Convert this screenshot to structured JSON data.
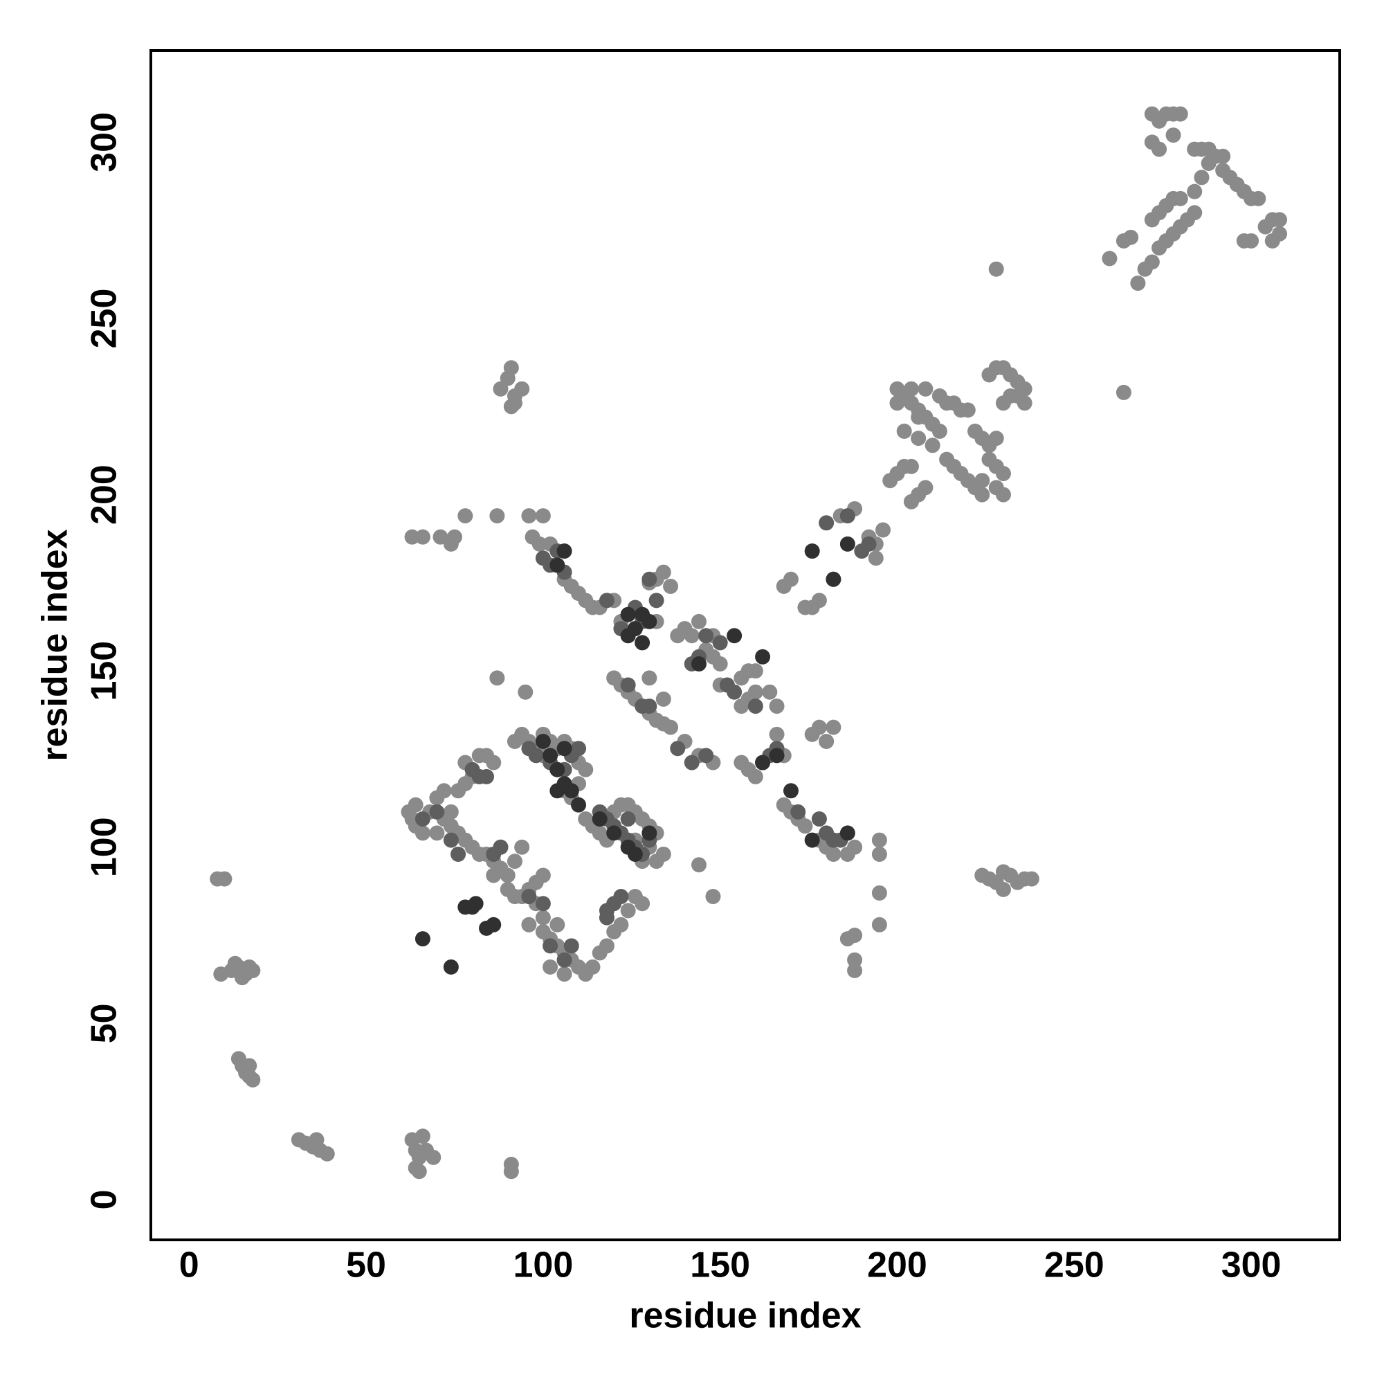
{
  "chart_data": {
    "type": "scatter",
    "x_label": "residue index",
    "y_label": "residue index",
    "xlim": [
      -10.8,
      325
    ],
    "ylim": [
      -11.4,
      326
    ],
    "xticks": [
      0,
      50,
      100,
      150,
      200,
      250,
      300
    ],
    "yticks": [
      0,
      50,
      100,
      150,
      200,
      250,
      300
    ],
    "grid": false,
    "series": [
      {
        "color": "#8a8a8a",
        "x": [
          8,
          10,
          9,
          12,
          14,
          16,
          18,
          13,
          15,
          17,
          14,
          15,
          16,
          17,
          18,
          17,
          31,
          33,
          35,
          37,
          39,
          36,
          63,
          64,
          65,
          66,
          67,
          69,
          64,
          65,
          91,
          91,
          88,
          90,
          91,
          92,
          94,
          91,
          92,
          63,
          66,
          71,
          75,
          74,
          78,
          87,
          87,
          95,
          96,
          100,
          97,
          99,
          102,
          106,
          108,
          110,
          112,
          114,
          116,
          120,
          134,
          132,
          136,
          130,
          122,
          126,
          128,
          132,
          140,
          138,
          142,
          146,
          148,
          150,
          144,
          148,
          120,
          122,
          124,
          126,
          130,
          132,
          134,
          136,
          140,
          144,
          148,
          130,
          134,
          150,
          156,
          158,
          160,
          164,
          166,
          156,
          158,
          160,
          156,
          158,
          160,
          168,
          166,
          168,
          170,
          172,
          174,
          178,
          180,
          182,
          186,
          188,
          176,
          178,
          180,
          182,
          195,
          195,
          195,
          195,
          188,
          186,
          188,
          188,
          148,
          144,
          168,
          170,
          174,
          176,
          178,
          182,
          184,
          188,
          192,
          194,
          196,
          194,
          198,
          200,
          202,
          204,
          204,
          206,
          208,
          200,
          202,
          204,
          206,
          208,
          210,
          212,
          202,
          206,
          210,
          204,
          208,
          212,
          200,
          206,
          214,
          216,
          218,
          220,
          222,
          224,
          226,
          228,
          214,
          216,
          218,
          220,
          222,
          224,
          226,
          228,
          230,
          224,
          228,
          230,
          226,
          228,
          230,
          232,
          234,
          236,
          230,
          232,
          234,
          236,
          228,
          264,
          224,
          226,
          228,
          230,
          232,
          234,
          236,
          238,
          230,
          260,
          264,
          266,
          268,
          270,
          272,
          274,
          276,
          278,
          280,
          282,
          284,
          272,
          274,
          276,
          278,
          280,
          272,
          274,
          278,
          272,
          274,
          276,
          278,
          280,
          284,
          286,
          284,
          286,
          288,
          290,
          292,
          288,
          292,
          294,
          296,
          298,
          300,
          302,
          298,
          300,
          306,
          308,
          306,
          308,
          304,
          62,
          63,
          64,
          66,
          68,
          64,
          70,
          72,
          74,
          70,
          72,
          76,
          78,
          80,
          78,
          82,
          84,
          86,
          74,
          76,
          78,
          80,
          82,
          84,
          86,
          88,
          90,
          92,
          94,
          88,
          86,
          90,
          92,
          94,
          96,
          98,
          100,
          98,
          100,
          96,
          100,
          102,
          104,
          106,
          108,
          110,
          112,
          114,
          116,
          118,
          120,
          122,
          124,
          126,
          128,
          104,
          102,
          106,
          94,
          96,
          98,
          100,
          92,
          100,
          102,
          104,
          106,
          108,
          110,
          112,
          110,
          108,
          106,
          112,
          114,
          116,
          118,
          120,
          122,
          124,
          126,
          128,
          130,
          132,
          130,
          132,
          134,
          128,
          126
        ],
        "y": [
          91,
          91,
          64,
          65,
          66,
          64,
          65,
          67,
          63,
          66,
          40,
          38,
          36,
          35,
          34,
          38,
          17,
          16,
          15,
          14,
          13,
          17,
          17,
          14,
          12,
          18,
          14,
          12,
          9,
          8,
          10,
          8,
          230,
          233,
          236,
          228,
          230,
          225,
          226,
          188,
          188,
          188,
          188,
          186,
          194,
          194,
          148,
          144,
          194,
          194,
          188,
          186,
          186,
          176,
          174,
          172,
          170,
          168,
          168,
          170,
          178,
          176,
          174,
          175,
          164,
          162,
          165,
          164,
          162,
          160,
          160,
          156,
          154,
          152,
          164,
          160,
          148,
          146,
          144,
          142,
          138,
          136,
          135,
          134,
          130,
          126,
          124,
          148,
          142,
          146,
          140,
          142,
          144,
          144,
          140,
          148,
          150,
          150,
          124,
          122,
          120,
          126,
          132,
          112,
          110,
          108,
          106,
          102,
          100,
          98,
          98,
          100,
          132,
          134,
          130,
          134,
          102,
          98,
          87,
          78,
          75,
          74,
          68,
          65,
          86,
          95,
          174,
          176,
          168,
          168,
          170,
          176,
          194,
          196,
          188,
          186,
          190,
          182,
          204,
          206,
          208,
          208,
          198,
          200,
          202,
          230,
          228,
          226,
          224,
          222,
          220,
          218,
          218,
          216,
          214,
          230,
          230,
          228,
          226,
          222,
          226,
          226,
          224,
          224,
          218,
          216,
          214,
          216,
          210,
          208,
          206,
          204,
          202,
          200,
          210,
          208,
          206,
          204,
          202,
          200,
          234,
          236,
          236,
          234,
          232,
          230,
          226,
          228,
          228,
          226,
          264,
          229,
          92,
          91,
          90,
          93,
          92,
          90,
          91,
          91,
          88,
          267,
          272,
          273,
          260,
          264,
          266,
          270,
          272,
          274,
          276,
          278,
          280,
          308,
          306,
          308,
          308,
          308,
          300,
          298,
          302,
          278,
          280,
          282,
          284,
          284,
          286,
          290,
          298,
          298,
          298,
          296,
          296,
          294,
          292,
          290,
          288,
          286,
          284,
          284,
          272,
          272,
          272,
          274,
          278,
          278,
          276,
          110,
          108,
          106,
          104,
          110,
          112,
          104,
          108,
          110,
          114,
          116,
          116,
          118,
          120,
          124,
          126,
          126,
          124,
          106,
          104,
          102,
          100,
          98,
          98,
          96,
          94,
          92,
          96,
          100,
          100,
          92,
          88,
          86,
          86,
          88,
          90,
          92,
          84,
          80,
          78,
          76,
          74,
          72,
          70,
          68,
          66,
          64,
          66,
          70,
          72,
          76,
          78,
          82,
          86,
          84,
          78,
          66,
          64,
          132,
          130,
          128,
          126,
          130,
          132,
          130,
          128,
          130,
          128,
          124,
          122,
          118,
          114,
          116,
          108,
          106,
          104,
          102,
          110,
          112,
          112,
          110,
          108,
          106,
          104,
          100,
          96,
          98,
          96,
          102
        ]
      },
      {
        "color": "#5e5e5e",
        "x": [
          100,
          102,
          104,
          106,
          118,
          122,
          124,
          126,
          128,
          130,
          132,
          142,
          144,
          146,
          150,
          124,
          128,
          130,
          138,
          142,
          146,
          152,
          154,
          160,
          162,
          164,
          166,
          172,
          178,
          180,
          182,
          184,
          186,
          190,
          192,
          180,
          96,
          98,
          102,
          104,
          106,
          108,
          110,
          66,
          70,
          74,
          76,
          86,
          88,
          96,
          100,
          102,
          106,
          108,
          116,
          118,
          120,
          122,
          124,
          126,
          124,
          128,
          130,
          118,
          120,
          122,
          118,
          80,
          82,
          84
        ],
        "y": [
          182,
          180,
          184,
          178,
          170,
          162,
          160,
          168,
          164,
          176,
          170,
          152,
          154,
          160,
          158,
          146,
          140,
          140,
          128,
          124,
          126,
          146,
          144,
          140,
          124,
          126,
          128,
          110,
          108,
          104,
          102,
          102,
          194,
          184,
          186,
          192,
          128,
          126,
          124,
          122,
          122,
          126,
          128,
          108,
          110,
          102,
          98,
          98,
          100,
          86,
          84,
          72,
          68,
          72,
          110,
          108,
          106,
          104,
          102,
          100,
          108,
          98,
          102,
          82,
          84,
          86,
          80,
          122,
          120,
          120
        ]
      },
      {
        "color": "#303030",
        "x": [
          66,
          74,
          80,
          81,
          84,
          86,
          78,
          104,
          106,
          108,
          110,
          106,
          102,
          100,
          104,
          116,
          120,
          124,
          126,
          130,
          124,
          126,
          128,
          130,
          124,
          128,
          144,
          154,
          162,
          162,
          166,
          170,
          176,
          186,
          182,
          176,
          186,
          104,
          106
        ],
        "y": [
          74,
          66,
          83,
          84,
          77,
          78,
          83,
          122,
          118,
          116,
          112,
          128,
          126,
          130,
          116,
          108,
          104,
          100,
          98,
          104,
          160,
          162,
          166,
          164,
          166,
          158,
          152,
          160,
          154,
          124,
          126,
          116,
          102,
          104,
          176,
          184,
          186,
          180,
          184
        ]
      }
    ]
  }
}
